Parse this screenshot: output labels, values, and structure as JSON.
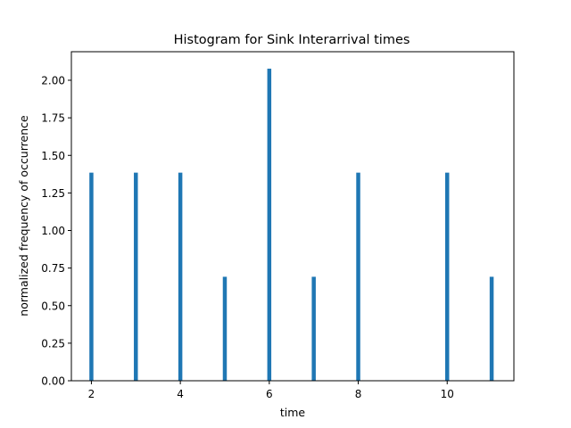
{
  "chart_data": {
    "type": "bar",
    "title": "Histogram for Sink Interarrival times",
    "xlabel": "time",
    "ylabel": "normalized frequency of occurrence",
    "xlim": [
      1.55,
      11.5
    ],
    "ylim": [
      0,
      2.19
    ],
    "xticks": [
      2,
      4,
      6,
      8,
      10
    ],
    "xtick_labels": [
      "2",
      "4",
      "6",
      "8",
      "10"
    ],
    "yticks": [
      0,
      0.25,
      0.5,
      0.75,
      1.0,
      1.25,
      1.5,
      1.75,
      2.0
    ],
    "ytick_labels": [
      "0.00",
      "0.25",
      "0.50",
      "0.75",
      "1.00",
      "1.25",
      "1.50",
      "1.75",
      "2.00"
    ],
    "bar_width": 0.09,
    "grid": false,
    "color": "#1f77b4",
    "x": [
      2,
      3,
      4,
      5,
      6,
      7,
      8,
      10,
      11
    ],
    "values": [
      1.385,
      1.385,
      1.385,
      0.692,
      2.077,
      0.692,
      1.385,
      1.385,
      0.692
    ]
  }
}
